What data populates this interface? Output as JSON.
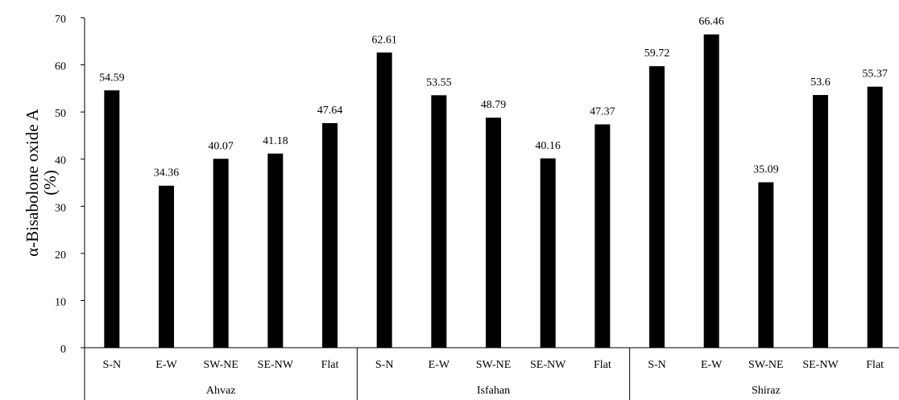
{
  "chart_data": {
    "type": "bar",
    "ylabel": "α-Bisabolone oxide A (%)",
    "ylim": [
      0,
      70
    ],
    "yticks": [
      0,
      10,
      20,
      30,
      40,
      50,
      60,
      70
    ],
    "grid": false,
    "legend": "none",
    "bar_color": "#000000",
    "groups": [
      {
        "name": "Ahvaz",
        "categories": [
          "S-N",
          "E-W",
          "SW-NE",
          "SE-NW",
          "Flat"
        ],
        "values": [
          54.59,
          34.36,
          40.07,
          41.18,
          47.64
        ]
      },
      {
        "name": "Isfahan",
        "categories": [
          "S-N",
          "E-W",
          "SW-NE",
          "SE-NW",
          "Flat"
        ],
        "values": [
          62.61,
          53.55,
          48.79,
          40.16,
          47.37
        ]
      },
      {
        "name": "Shiraz",
        "categories": [
          "S-N",
          "E-W",
          "SW-NE",
          "SE-NW",
          "Flat"
        ],
        "values": [
          59.72,
          66.46,
          35.09,
          53.6,
          55.37
        ]
      }
    ]
  }
}
